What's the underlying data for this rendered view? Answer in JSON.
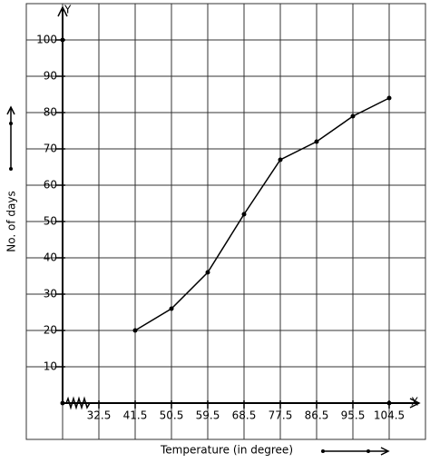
{
  "chart_data": {
    "type": "line",
    "x_label": "Temperature (in degree)",
    "y_label": "No. of days",
    "x_axis_name": "X",
    "y_axis_name": "Y",
    "x": [
      41.5,
      50.5,
      59.5,
      68.5,
      77.5,
      86.5,
      95.5,
      104.5
    ],
    "values": [
      20,
      26,
      36,
      52,
      67,
      72,
      79,
      84
    ],
    "color": "#000000",
    "xlim": [
      14.5,
      113.5
    ],
    "xticks": [
      32.5,
      41.5,
      50.5,
      59.5,
      68.5,
      77.5,
      86.5,
      95.5,
      104.5
    ],
    "ylim": [
      -10,
      110
    ],
    "yticks": [
      10,
      20,
      30,
      40,
      50,
      60,
      70,
      80,
      90,
      100
    ],
    "grid": true
  }
}
